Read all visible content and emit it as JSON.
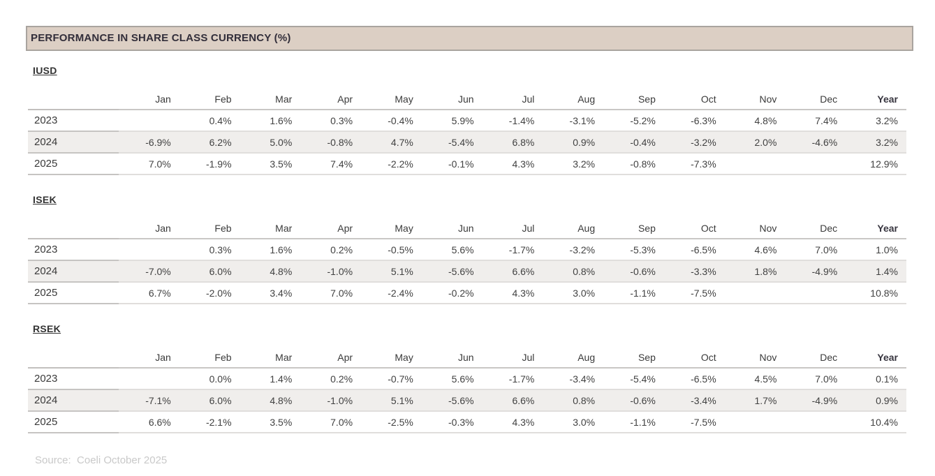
{
  "title": "PERFORMANCE IN SHARE CLASS CURRENCY (%)",
  "months": [
    "Jan",
    "Feb",
    "Mar",
    "Apr",
    "May",
    "Jun",
    "Jul",
    "Aug",
    "Sep",
    "Oct",
    "Nov",
    "Dec"
  ],
  "year_label": "Year",
  "source": "Source:  Coeli October 2025",
  "colors": {
    "title_bar_bg": "#dccfc4",
    "title_bar_border": "#a9a49f",
    "row_stripe": "#f0eeec"
  },
  "tables": [
    {
      "name": "IUSD",
      "rows": [
        {
          "year": "2023",
          "values": [
            "",
            "0.4%",
            "1.6%",
            "0.3%",
            "-0.4%",
            "5.9%",
            "-1.4%",
            "-3.1%",
            "-5.2%",
            "-6.3%",
            "4.8%",
            "7.4%"
          ],
          "total": "3.2%"
        },
        {
          "year": "2024",
          "values": [
            "-6.9%",
            "6.2%",
            "5.0%",
            "-0.8%",
            "4.7%",
            "-5.4%",
            "6.8%",
            "0.9%",
            "-0.4%",
            "-3.2%",
            "2.0%",
            "-4.6%"
          ],
          "total": "3.2%"
        },
        {
          "year": "2025",
          "values": [
            "7.0%",
            "-1.9%",
            "3.5%",
            "7.4%",
            "-2.2%",
            "-0.1%",
            "4.3%",
            "3.2%",
            "-0.8%",
            "-7.3%",
            "",
            ""
          ],
          "total": "12.9%"
        }
      ]
    },
    {
      "name": "ISEK",
      "rows": [
        {
          "year": "2023",
          "values": [
            "",
            "0.3%",
            "1.6%",
            "0.2%",
            "-0.5%",
            "5.6%",
            "-1.7%",
            "-3.2%",
            "-5.3%",
            "-6.5%",
            "4.6%",
            "7.0%"
          ],
          "total": "1.0%"
        },
        {
          "year": "2024",
          "values": [
            "-7.0%",
            "6.0%",
            "4.8%",
            "-1.0%",
            "5.1%",
            "-5.6%",
            "6.6%",
            "0.8%",
            "-0.6%",
            "-3.3%",
            "1.8%",
            "-4.9%"
          ],
          "total": "1.4%"
        },
        {
          "year": "2025",
          "values": [
            "6.7%",
            "-2.0%",
            "3.4%",
            "7.0%",
            "-2.4%",
            "-0.2%",
            "4.3%",
            "3.0%",
            "-1.1%",
            "-7.5%",
            "",
            ""
          ],
          "total": "10.8%"
        }
      ]
    },
    {
      "name": "RSEK",
      "rows": [
        {
          "year": "2023",
          "values": [
            "",
            "0.0%",
            "1.4%",
            "0.2%",
            "-0.7%",
            "5.6%",
            "-1.7%",
            "-3.4%",
            "-5.4%",
            "-6.5%",
            "4.5%",
            "7.0%"
          ],
          "total": "0.1%"
        },
        {
          "year": "2024",
          "values": [
            "-7.1%",
            "6.0%",
            "4.8%",
            "-1.0%",
            "5.1%",
            "-5.6%",
            "6.6%",
            "0.8%",
            "-0.6%",
            "-3.4%",
            "1.7%",
            "-4.9%"
          ],
          "total": "0.9%"
        },
        {
          "year": "2025",
          "values": [
            "6.6%",
            "-2.1%",
            "3.5%",
            "7.0%",
            "-2.5%",
            "-0.3%",
            "4.3%",
            "3.0%",
            "-1.1%",
            "-7.5%",
            "",
            ""
          ],
          "total": "10.4%"
        }
      ]
    }
  ]
}
